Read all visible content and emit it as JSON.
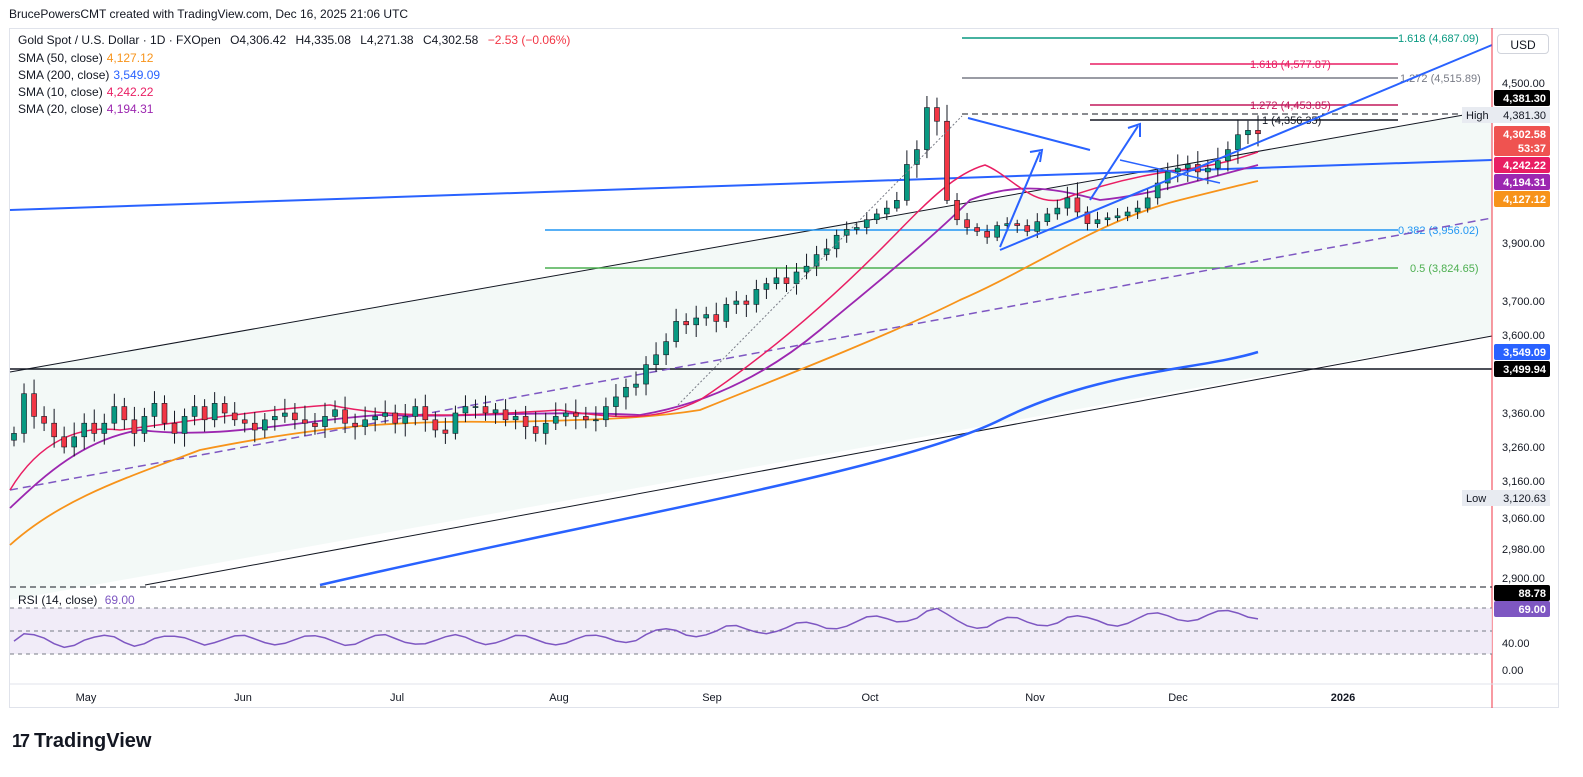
{
  "header": {
    "text": "BrucePowersCMT created with TradingView.com, Dec 16, 2025 21:06 UTC"
  },
  "symbol": {
    "title": "Gold Spot / U.S. Dollar · 1D · FXOpen",
    "open": "O4,306.42",
    "high": "H4,335.08",
    "low": "L4,271.38",
    "close": "C4,302.58",
    "change": "−2.53 (−0.06%)"
  },
  "legends": [
    {
      "name": "SMA (50, close)",
      "value": "4,127.12",
      "color": "#f7931a"
    },
    {
      "name": "SMA (200, close)",
      "value": "3,549.09",
      "color": "#2962ff"
    },
    {
      "name": "SMA (10, close)",
      "value": "4,242.22",
      "color": "#e91e63"
    },
    {
      "name": "SMA (20, close)",
      "value": "4,194.31",
      "color": "#9c27b0"
    }
  ],
  "currency": "USD",
  "price_axis": {
    "ticks": [
      "4,500.00",
      "3,900.00",
      "3,700.00",
      "3,600.00",
      "3,360.00",
      "3,260.00",
      "3,160.00",
      "3,060.00",
      "2,980.00",
      "2,900.00"
    ],
    "tags": [
      {
        "label": "4,381.30",
        "bg": "#000000"
      },
      {
        "label": "4,302.58",
        "bg": "#ef5350"
      },
      {
        "label": "53:37",
        "bg": "#ef5350"
      },
      {
        "label": "4,242.22",
        "bg": "#e91e63"
      },
      {
        "label": "4,194.31",
        "bg": "#9c27b0"
      },
      {
        "label": "4,127.12",
        "bg": "#f7931a"
      },
      {
        "label": "3,549.09",
        "bg": "#2962ff"
      },
      {
        "label": "3,499.94",
        "bg": "#000000"
      }
    ],
    "high_label": "High",
    "high_value": "4,381.30",
    "low_label": "Low",
    "low_value": "3,120.63"
  },
  "fib_labels": [
    {
      "text": "1.618 (4,687.09)",
      "color": "#089981"
    },
    {
      "text": "1.618 (4,577.87)",
      "color": "#e91e63"
    },
    {
      "text": "1.272 (4,515.89)",
      "color": "#787b86"
    },
    {
      "text": "1.272 (4,453.85)",
      "color": "#c2185b"
    },
    {
      "text": "1 (4,356.35)",
      "color": "#131722"
    },
    {
      "text": "0.382 (3,956.02)",
      "color": "#2196f3"
    },
    {
      "text": "0.5 (3,824.65)",
      "color": "#4caf50"
    }
  ],
  "rsi": {
    "label": "RSI (14, close)",
    "value": "69.00",
    "ticks": [
      "40.00",
      "0.00"
    ],
    "tags": [
      {
        "label": "88.78",
        "bg": "#000000"
      },
      {
        "label": "69.00",
        "bg": "#7e57c2"
      }
    ]
  },
  "time_axis": [
    "May",
    "Jun",
    "Jul",
    "Aug",
    "Sep",
    "Oct",
    "Nov",
    "Dec",
    "2026"
  ],
  "footer": {
    "brand": "TradingView",
    "mark": "17"
  },
  "chart_data": {
    "type": "candlestick",
    "title": "Gold Spot / U.S. Dollar · 1D · FXOpen",
    "x_axis": [
      "May",
      "Jun",
      "Jul",
      "Aug",
      "Sep",
      "Oct",
      "Nov",
      "Dec",
      "2026"
    ],
    "y_axis_range": [
      2880,
      4760
    ],
    "close_series": [
      3300,
      3420,
      3350,
      3330,
      3290,
      3260,
      3290,
      3330,
      3300,
      3330,
      3380,
      3340,
      3300,
      3350,
      3390,
      3330,
      3300,
      3350,
      3380,
      3340,
      3390,
      3360,
      3340,
      3330,
      3310,
      3340,
      3350,
      3360,
      3340,
      3330,
      3320,
      3350,
      3370,
      3330,
      3320,
      3340,
      3350,
      3360,
      3330,
      3350,
      3380,
      3340,
      3310,
      3300,
      3360,
      3380,
      3380,
      3360,
      3370,
      3340,
      3350,
      3320,
      3300,
      3330,
      3350,
      3360,
      3350,
      3340,
      3340,
      3380,
      3410,
      3440,
      3450,
      3510,
      3540,
      3580,
      3640,
      3630,
      3650,
      3660,
      3640,
      3690,
      3700,
      3690,
      3740,
      3760,
      3780,
      3760,
      3800,
      3820,
      3860,
      3880,
      3940,
      3970,
      3980,
      4020,
      4050,
      4080,
      4120,
      4220,
      4260,
      4360,
      4330,
      4120,
      4020,
      3980,
      3960,
      3930,
      3990,
      4000,
      3990,
      3960,
      4010,
      4050,
      4080,
      4130,
      4060,
      4000,
      4020,
      4030,
      4040,
      4060,
      4080,
      4130,
      4170,
      4200,
      4210,
      4220,
      4200,
      4210,
      4230,
      4260,
      4300,
      4310,
      4302.58
    ],
    "sma_50_last": 4127.12,
    "sma_200_last": 3549.09,
    "sma_10_last": 4242.22,
    "sma_20_last": 4194.31,
    "high": 4381.3,
    "low": 3120.63,
    "horizontal_level": 3499.94,
    "fib_levels": [
      {
        "ratio": "1.618",
        "price": 4687.09
      },
      {
        "ratio": "1.618",
        "price": 4577.87
      },
      {
        "ratio": "1.272",
        "price": 4515.89
      },
      {
        "ratio": "1.272",
        "price": 4453.85
      },
      {
        "ratio": "1",
        "price": 4356.35
      },
      {
        "ratio": "0.382",
        "price": 3956.02
      },
      {
        "ratio": "0.5",
        "price": 3824.65
      }
    ],
    "rsi_last": 69.0
  }
}
